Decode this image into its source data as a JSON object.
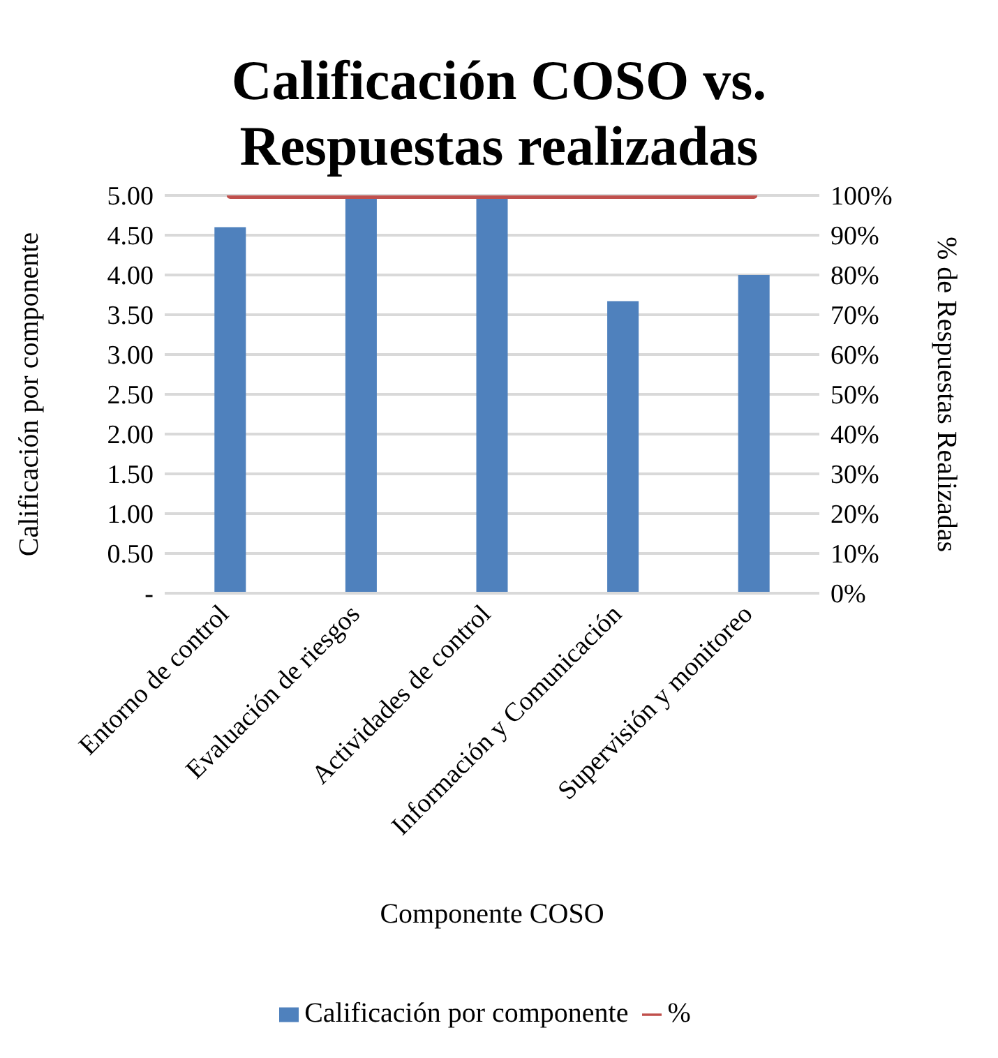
{
  "chart_data": {
    "type": "bar",
    "title": "Calificación COSO vs. Respuestas realizadas",
    "xlabel": "Componente COSO",
    "ylabel": "Calificación por componente",
    "y2label": "% de Respuestas Realizadas",
    "categories": [
      "Entorno de control",
      "Evaluación de riesgos",
      "Actividades de control",
      "Información y Comunicación",
      "Supervisión y monitoreo"
    ],
    "series": [
      {
        "name": "Calificación por componente",
        "color": "#4f81bd",
        "values": [
          4.6,
          5.0,
          5.0,
          3.67,
          4.0
        ]
      },
      {
        "name": "%",
        "type": "line",
        "axis": "y2",
        "color": "#c0504d",
        "values": [
          100,
          100,
          100,
          100,
          100
        ]
      }
    ],
    "ylim": [
      0,
      5
    ],
    "yticks": [
      {
        "value": 0,
        "label": "-"
      },
      {
        "value": 0.5,
        "label": "0.50"
      },
      {
        "value": 1,
        "label": "1.00"
      },
      {
        "value": 1.5,
        "label": "1.50"
      },
      {
        "value": 2,
        "label": "2.00"
      },
      {
        "value": 2.5,
        "label": "2.50"
      },
      {
        "value": 3,
        "label": "3.00"
      },
      {
        "value": 3.5,
        "label": "3.50"
      },
      {
        "value": 4,
        "label": "4.00"
      },
      {
        "value": 4.5,
        "label": "4.50"
      },
      {
        "value": 5,
        "label": "5.00"
      }
    ],
    "y2lim": [
      0,
      100
    ],
    "y2ticks": [
      {
        "value": 0,
        "label": "0%"
      },
      {
        "value": 10,
        "label": "10%"
      },
      {
        "value": 20,
        "label": "20%"
      },
      {
        "value": 30,
        "label": "30%"
      },
      {
        "value": 40,
        "label": "40%"
      },
      {
        "value": 50,
        "label": "50%"
      },
      {
        "value": 60,
        "label": "60%"
      },
      {
        "value": 70,
        "label": "70%"
      },
      {
        "value": 80,
        "label": "80%"
      },
      {
        "value": 90,
        "label": "90%"
      },
      {
        "value": 100,
        "label": "100%"
      }
    ],
    "grid": "y",
    "legend": "bottom",
    "marker": "none",
    "line_style": "solid"
  }
}
